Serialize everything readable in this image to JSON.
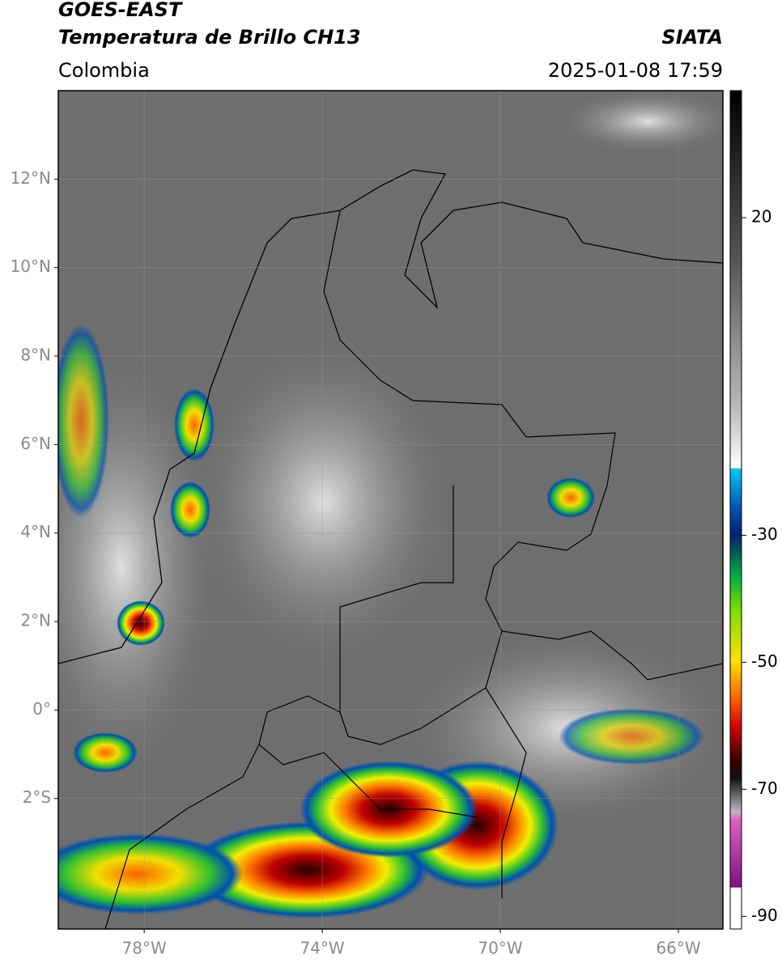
{
  "header": {
    "satellite": "GOES-EAST",
    "product": "Temperatura de Brillo CH13",
    "source": "SIATA",
    "region": "Colombia",
    "datetime": "2025-01-08 17:59"
  },
  "map": {
    "lat_range": [
      -4.95,
      14.0
    ],
    "lon_range": [
      -79.93,
      -65.0
    ],
    "lat_ticks": [
      {
        "value": 12,
        "label": "12°N"
      },
      {
        "value": 10,
        "label": "10°N"
      },
      {
        "value": 8,
        "label": "8°N"
      },
      {
        "value": 6,
        "label": "6°N"
      },
      {
        "value": 4,
        "label": "4°N"
      },
      {
        "value": 2,
        "label": "2°N"
      },
      {
        "value": 0,
        "label": "0°"
      },
      {
        "value": -2,
        "label": "2°S"
      }
    ],
    "lon_ticks": [
      {
        "value": -78,
        "label": "78°W"
      },
      {
        "value": -74,
        "label": "74°W"
      },
      {
        "value": -70,
        "label": "70°W"
      },
      {
        "value": -66,
        "label": "66°W"
      }
    ]
  },
  "colorbar": {
    "range": [
      40,
      -92
    ],
    "ticks": [
      20,
      -30,
      -50,
      -70,
      -90
    ]
  }
}
